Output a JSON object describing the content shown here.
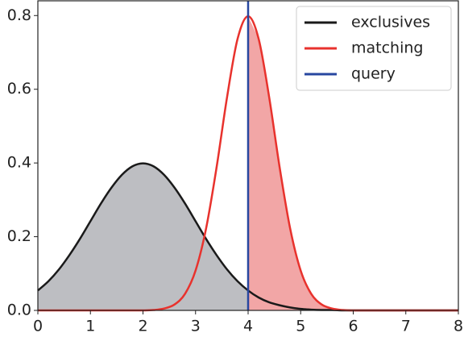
{
  "chart_data": {
    "type": "line",
    "x": [
      0,
      0.2,
      0.4,
      0.6,
      0.8,
      1,
      1.2,
      1.4,
      1.6,
      1.8,
      2,
      2.2,
      2.4,
      2.6,
      2.8,
      3,
      3.2,
      3.4,
      3.6,
      3.8,
      4,
      4.2,
      4.4,
      4.6,
      4.8,
      5,
      5.2,
      5.4,
      5.6,
      5.8,
      6,
      6.2,
      6.4,
      6.6,
      6.8,
      7,
      7.2,
      7.4,
      7.6,
      7.8,
      8
    ],
    "series": [
      {
        "name": "exclusives",
        "color": "#1a1a1a",
        "fill_color": "#bdbec2",
        "fill_side": "left",
        "values": [
          0.054,
          0.079,
          0.111,
          0.15,
          0.194,
          0.242,
          0.29,
          0.333,
          0.368,
          0.391,
          0.399,
          0.391,
          0.368,
          0.333,
          0.29,
          0.242,
          0.194,
          0.15,
          0.111,
          0.079,
          0.054,
          0.035,
          0.022,
          0.014,
          0.008,
          0.004,
          0.002,
          0.001,
          0.001,
          0,
          0,
          0,
          0,
          0,
          0,
          0,
          0,
          0,
          0,
          0,
          0
        ]
      },
      {
        "name": "matching",
        "color": "#e8322d",
        "fill_color": "#f2a6a6",
        "fill_side": "right",
        "values": [
          0,
          0,
          0,
          0,
          0,
          0,
          0,
          0,
          0,
          0,
          0,
          0.001,
          0.005,
          0.016,
          0.045,
          0.108,
          0.222,
          0.388,
          0.579,
          0.737,
          0.798,
          0.737,
          0.579,
          0.388,
          0.222,
          0.108,
          0.045,
          0.016,
          0.005,
          0.001,
          0,
          0,
          0,
          0,
          0,
          0,
          0,
          0,
          0,
          0,
          0
        ]
      }
    ],
    "vline": {
      "name": "query",
      "color": "#2747a0",
      "x": 4
    },
    "xlim": [
      0,
      8
    ],
    "xticks": [
      0,
      1,
      2,
      3,
      4,
      5,
      6,
      7,
      8
    ],
    "ylim": [
      0,
      0.84
    ],
    "yticks": [
      {
        "value": 0,
        "label": "0.0"
      },
      0.2,
      0.4,
      0.6,
      0.8
    ],
    "legend": "upper right"
  }
}
